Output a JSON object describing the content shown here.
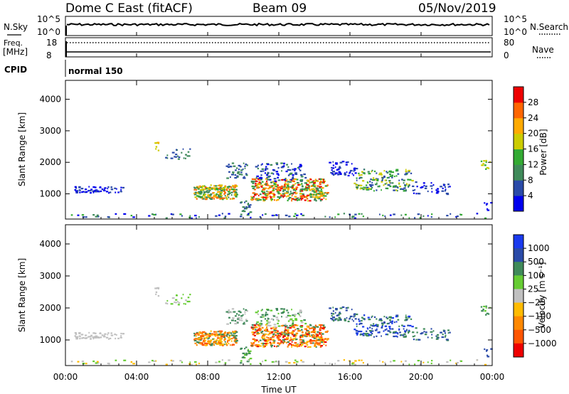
{
  "header": {
    "title": "Dome C East (fitACF)",
    "beam": "Beam 09",
    "date": "05/Nov/2019"
  },
  "noise_panel": {
    "left_label": "N.Sky",
    "right_label": "N.Search",
    "left_ticks": [
      "10^5",
      "10^0"
    ],
    "right_ticks": [
      "10^5",
      "10^0"
    ]
  },
  "freq_panel": {
    "left_label_1": "Freq.",
    "left_label_2": "[MHz]",
    "right_label": "Nave",
    "left_ticks": [
      "18",
      "8"
    ],
    "right_ticks": [
      "80",
      "0"
    ]
  },
  "cpid": {
    "label": "CPID",
    "mode": "normal 150"
  },
  "chart_data": [
    {
      "type": "heatmap",
      "name": "power",
      "ylabel": "Slant Range [km]",
      "yticks": [
        "1000",
        "2000",
        "3000",
        "4000"
      ],
      "ylim": [
        200,
        4600
      ],
      "colorbar_label": "Power [dB]",
      "colorbar_ticks": [
        "4",
        "8",
        "12",
        "16",
        "20",
        "24",
        "28"
      ],
      "colors": [
        "#0000ee",
        "#2a4aa8",
        "#3f8a5a",
        "#33aa33",
        "#cccc00",
        "#ffaa00",
        "#ff6600",
        "#ee0000"
      ]
    },
    {
      "type": "heatmap",
      "name": "velocity",
      "ylabel": "Slant Range [km]",
      "yticks": [
        "1000",
        "2000",
        "3000",
        "4000"
      ],
      "ylim": [
        200,
        4600
      ],
      "colorbar_label": "Velocity [m s⁻¹]",
      "colorbar_ticks": [
        "1000",
        "500",
        "100",
        "25",
        "−25",
        "−100",
        "−500",
        "−1000"
      ],
      "colors": [
        "#1a3aee",
        "#2a4aa8",
        "#3f8a5a",
        "#66cc33",
        "#c0c0c0",
        "#ffbb00",
        "#ff8800",
        "#ff5500",
        "#ee0000"
      ]
    }
  ],
  "x_axis": {
    "label": "Time UT",
    "ticks": [
      "00:00",
      "04:00",
      "08:00",
      "12:00",
      "16:00",
      "20:00",
      "00:00"
    ],
    "xlim_hours": [
      0,
      24
    ]
  }
}
